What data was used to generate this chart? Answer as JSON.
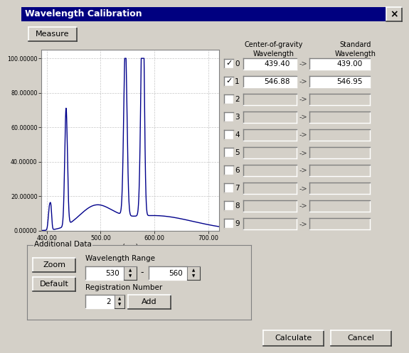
{
  "title": "Wavelength Calibration",
  "dialog_bg": "#d4d0c8",
  "plot_line_color": "#00008b",
  "plot_xlim": [
    390,
    720
  ],
  "plot_ylim": [
    0,
    105
  ],
  "plot_xticks": [
    400,
    500,
    600,
    700
  ],
  "plot_yticks": [
    0,
    20,
    40,
    60,
    80,
    100
  ],
  "plot_ytick_labels": [
    "0.00000",
    "20.00000",
    "40.00000",
    "60.00000",
    "80.00000",
    "100.00000"
  ],
  "plot_xtick_labels": [
    "400.00",
    "500.00",
    "600.00",
    "700.00"
  ],
  "plot_xlabel": "(nm)",
  "col1_header": "Center-of-gravity\nWavelength",
  "col2_header": "Standard\nWavelength",
  "rows": [
    {
      "checked": true,
      "label": "0",
      "cog": "439.40",
      "std": "439.00"
    },
    {
      "checked": true,
      "label": "1",
      "cog": "546.88",
      "std": "546.95"
    },
    {
      "checked": false,
      "label": "2",
      "cog": "",
      "std": ""
    },
    {
      "checked": false,
      "label": "3",
      "cog": "",
      "std": ""
    },
    {
      "checked": false,
      "label": "4",
      "cog": "",
      "std": ""
    },
    {
      "checked": false,
      "label": "5",
      "cog": "",
      "std": ""
    },
    {
      "checked": false,
      "label": "6",
      "cog": "",
      "std": ""
    },
    {
      "checked": false,
      "label": "7",
      "cog": "",
      "std": ""
    },
    {
      "checked": false,
      "label": "8",
      "cog": "",
      "std": ""
    },
    {
      "checked": false,
      "label": "9",
      "cog": "",
      "std": ""
    }
  ],
  "additional_data_label": "Additional Data",
  "wavelength_range_label": "Wavelength Range",
  "wl_range_start": "530",
  "wl_range_end": "560",
  "registration_number_label": "Registration Number",
  "reg_number": "2"
}
